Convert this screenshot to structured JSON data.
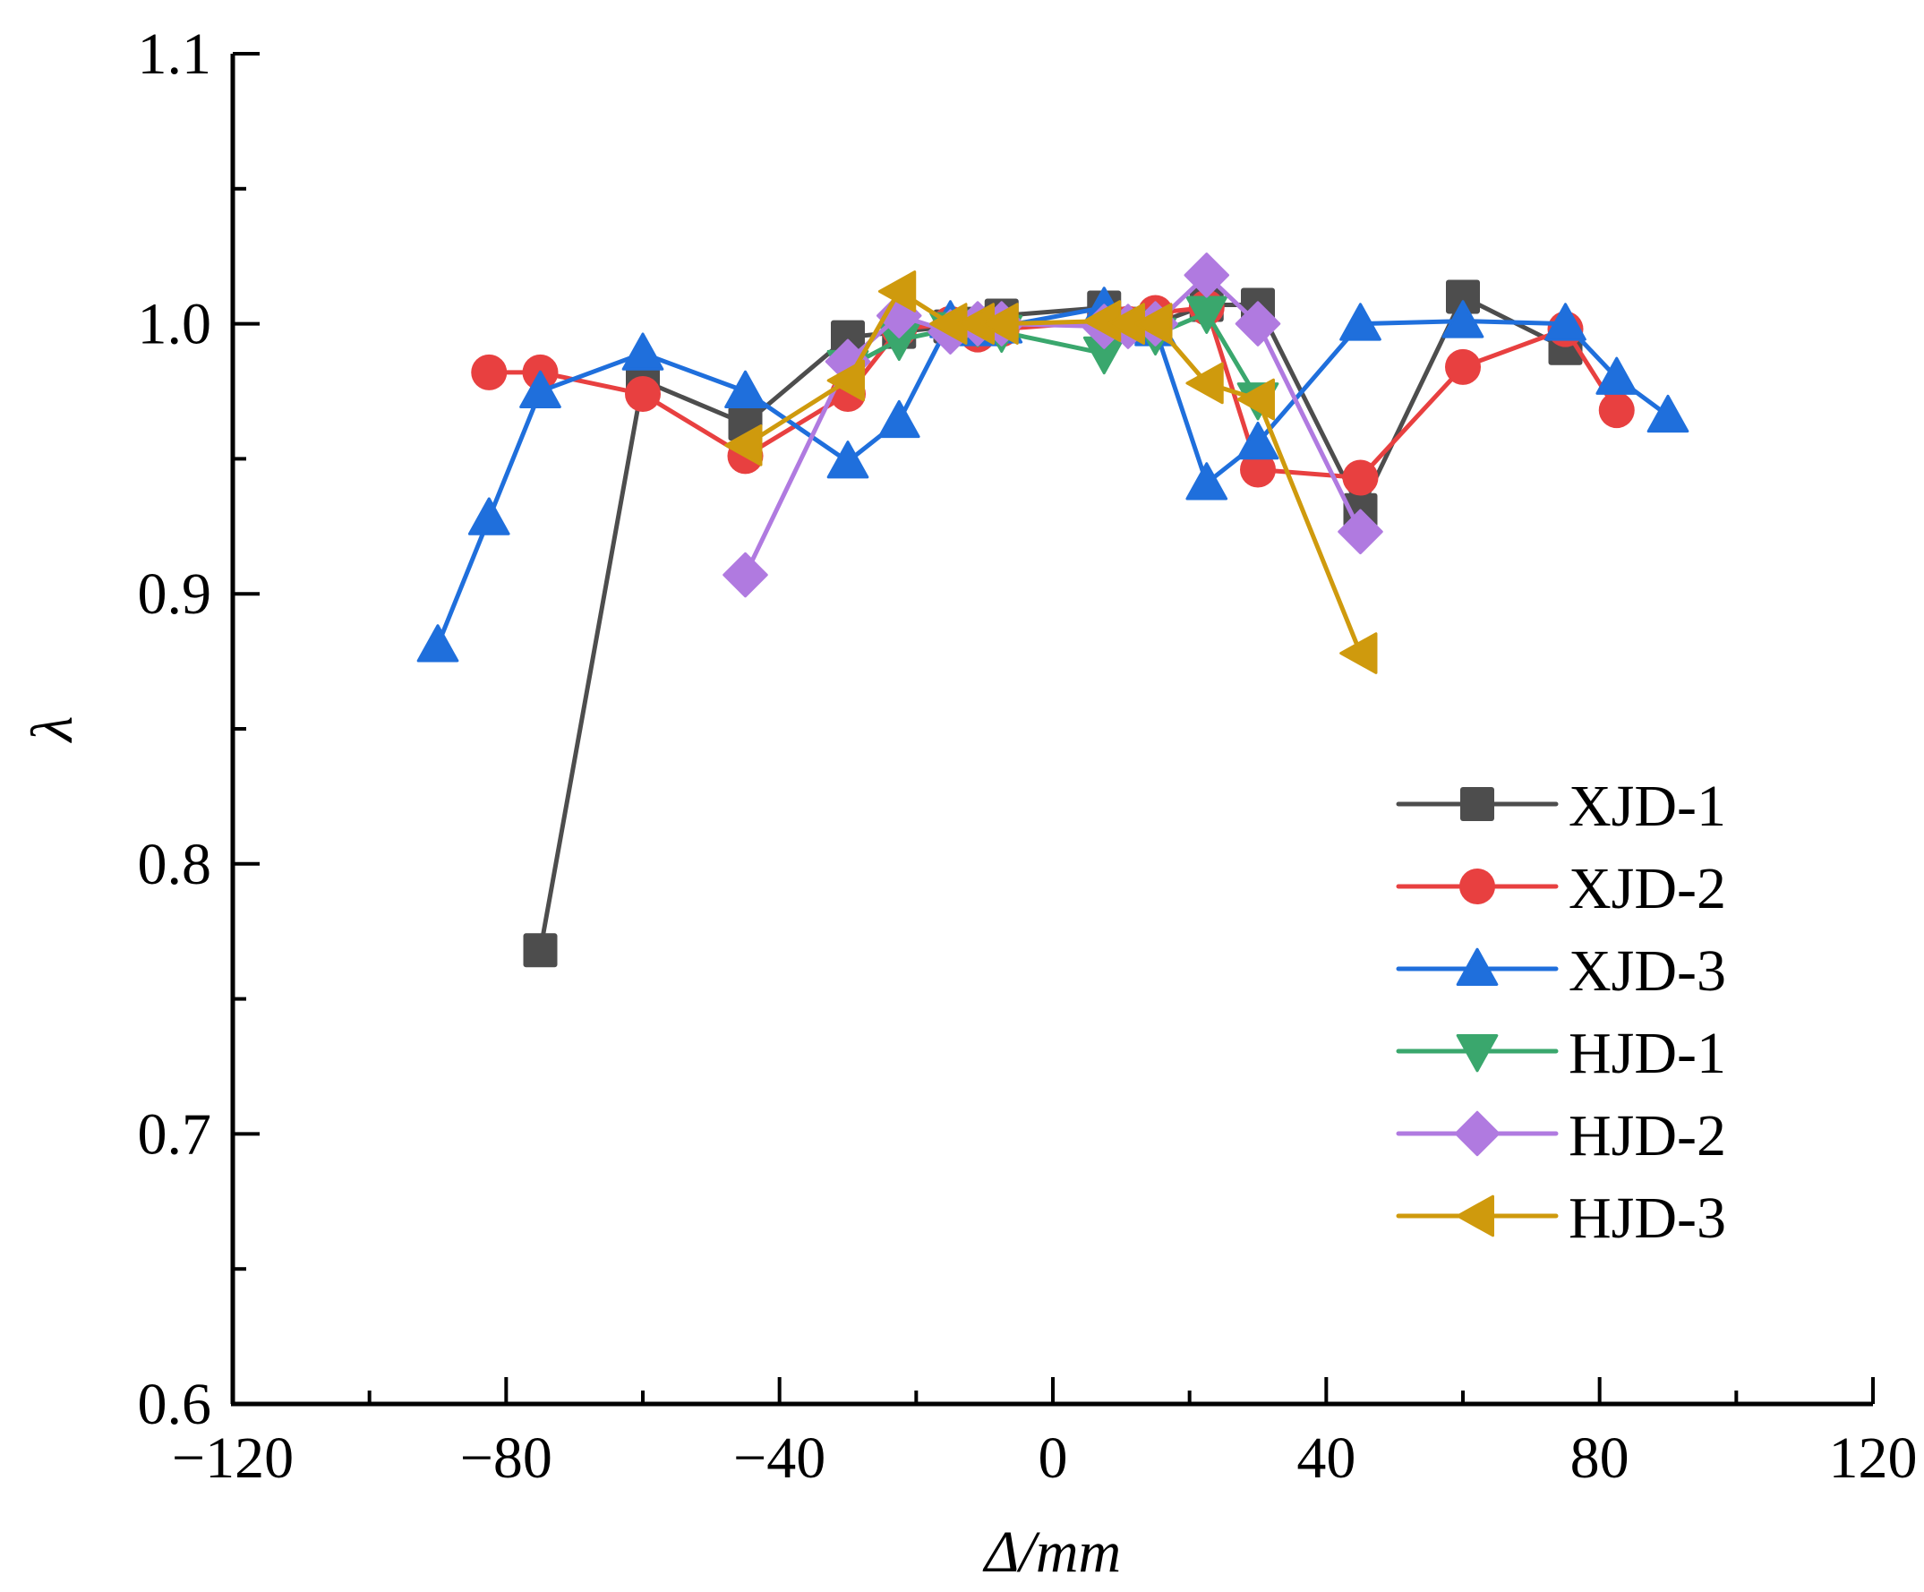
{
  "chart_data": {
    "type": "line",
    "title": "",
    "xlabel": "Δ/mm",
    "ylabel": "λ",
    "xlim": [
      -120,
      120
    ],
    "ylim": [
      0.6,
      1.1
    ],
    "xticks": [
      -120,
      -80,
      -40,
      0,
      40,
      80,
      120
    ],
    "xtick_labels": [
      "−120",
      "−80",
      "−40",
      "0",
      "40",
      "80",
      "120"
    ],
    "yticks": [
      0.6,
      0.7,
      0.8,
      0.9,
      1.0,
      1.1
    ],
    "ytick_labels": [
      "0.6",
      "0.7",
      "0.8",
      "0.9",
      "1.0",
      "1.1"
    ],
    "grid": false,
    "legend_position": "lower-right",
    "series": [
      {
        "name": "XJD-1",
        "color": "#4d4d4d",
        "marker": "square",
        "x": [
          -75,
          -60,
          -45,
          -30,
          -22.5,
          -15,
          -11,
          -7.5,
          7.5,
          11,
          15,
          22.5,
          30,
          45,
          60,
          75
        ],
        "y": [
          0.768,
          0.979,
          0.963,
          0.995,
          0.997,
          0.999,
          1.0,
          1.003,
          1.006,
          1.0,
          1.0,
          1.007,
          1.007,
          0.931,
          1.01,
          0.991
        ]
      },
      {
        "name": "XJD-2",
        "color": "#e84040",
        "marker": "circle",
        "x": [
          -82.5,
          -75,
          -60,
          -45,
          -30,
          -22.5,
          -15,
          -11,
          -7.5,
          7.5,
          11,
          15,
          22.5,
          30,
          45,
          60,
          75,
          82.5
        ],
        "y": [
          0.982,
          0.982,
          0.974,
          0.951,
          0.974,
          0.998,
          1.0,
          0.996,
          0.998,
          1.001,
          1.0,
          1.004,
          1.006,
          0.946,
          0.943,
          0.984,
          0.998,
          0.968
        ]
      },
      {
        "name": "XJD-3",
        "color": "#1f6fdc",
        "marker": "triangle-up",
        "x": [
          -90,
          -82.5,
          -75,
          -60,
          -45,
          -30,
          -22.5,
          -15,
          -11,
          -7.5,
          7.5,
          11,
          15,
          22.5,
          30,
          45,
          60,
          75,
          82.5,
          90
        ],
        "y": [
          0.881,
          0.928,
          0.975,
          0.989,
          0.975,
          0.949,
          0.964,
          1.001,
          0.998,
          0.999,
          1.006,
          0.999,
          0.998,
          0.941,
          0.956,
          1.0,
          1.001,
          1.0,
          0.98,
          0.966
        ]
      },
      {
        "name": "HJD-1",
        "color": "#3aa76d",
        "marker": "triangle-down",
        "x": [
          -30,
          -22.5,
          -15,
          -11,
          -7.5,
          7.5,
          11,
          15,
          22.5,
          30
        ],
        "y": [
          0.984,
          0.994,
          0.998,
          0.999,
          0.997,
          0.989,
          0.999,
          0.996,
          1.004,
          0.972
        ]
      },
      {
        "name": "HJD-2",
        "color": "#b07ae0",
        "marker": "diamond",
        "x": [
          -45,
          -30,
          -22.5,
          -15,
          -11,
          -7.5,
          7.5,
          11,
          15,
          22.5,
          30,
          45
        ],
        "y": [
          0.907,
          0.986,
          1.003,
          0.997,
          1.0,
          1.0,
          0.999,
          0.999,
          1.0,
          1.018,
          1.0,
          0.923
        ]
      },
      {
        "name": "HJD-3",
        "color": "#cf9a0d",
        "marker": "triangle-left",
        "x": [
          -45,
          -30,
          -22.5,
          -15,
          -11,
          -7.5,
          7.5,
          11,
          15,
          22.5,
          30,
          45
        ],
        "y": [
          0.955,
          0.979,
          1.012,
          1.0,
          1.0,
          1.0,
          1.001,
          1.0,
          1.0,
          0.978,
          0.972,
          0.878
        ]
      }
    ]
  }
}
